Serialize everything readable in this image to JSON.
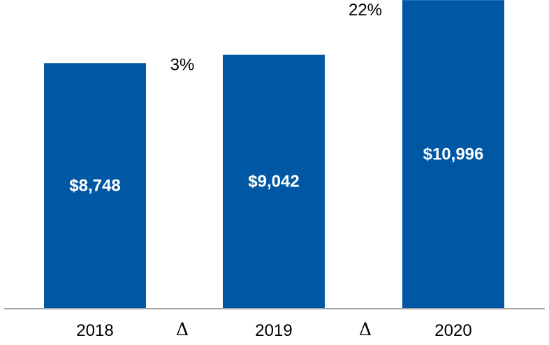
{
  "chart_data": {
    "type": "bar",
    "categories": [
      "2018",
      "2019",
      "2020"
    ],
    "values": [
      8748,
      9042,
      10996
    ],
    "value_labels": [
      "$8,748",
      "$9,042",
      "$10,996"
    ],
    "changes": [
      {
        "label": "3%",
        "symbol": "Δ"
      },
      {
        "label": "22%",
        "symbol": "Δ"
      }
    ],
    "title": "",
    "xlabel": "",
    "ylabel": "",
    "ylim": [
      0,
      11000
    ],
    "grid": false,
    "legend": "none",
    "colors": {
      "bar": "#0058A4",
      "axis": "#A6A6A6",
      "value_text": "#FFFFFF",
      "text": "#000000"
    }
  }
}
